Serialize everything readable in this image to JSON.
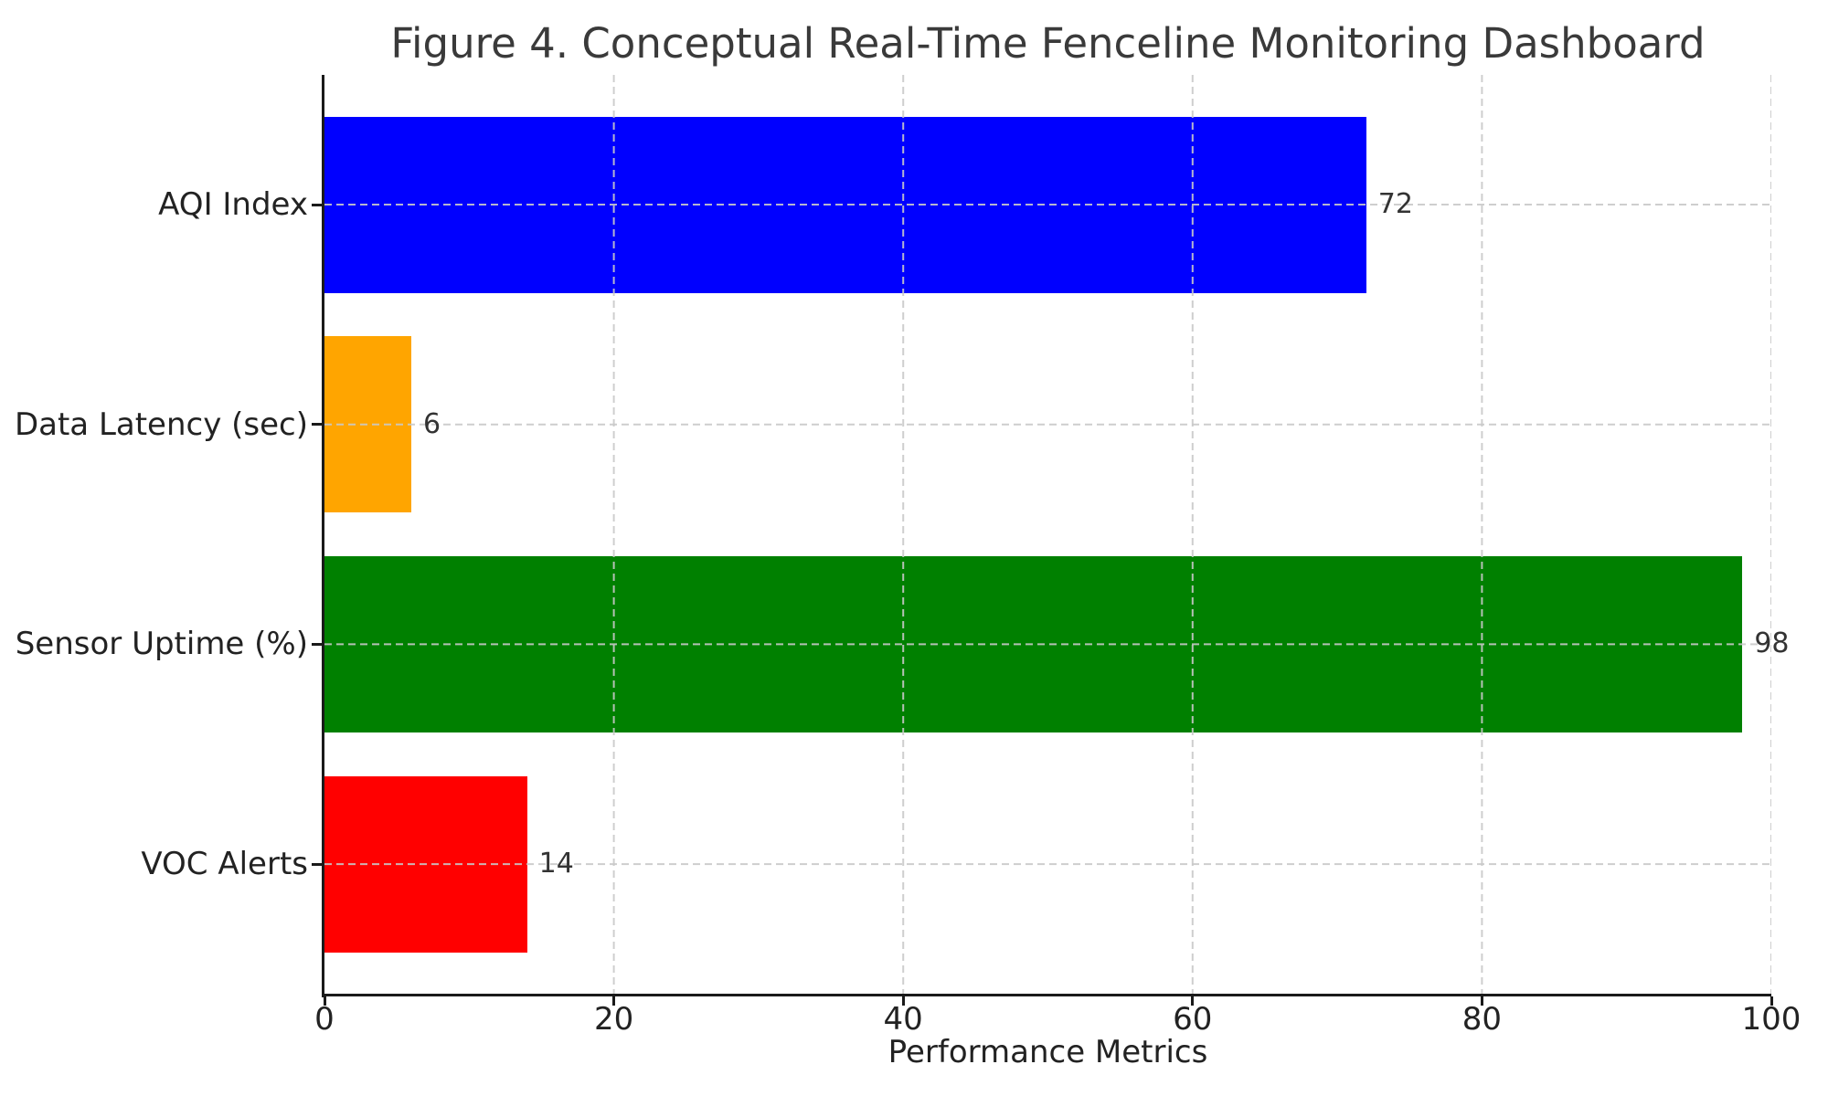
{
  "figure": {
    "title": "Figure 4. Conceptual Real-Time Fenceline Monitoring Dashboard"
  },
  "chart_data": {
    "type": "bar",
    "orientation": "horizontal",
    "title": "Figure 4. Conceptual Real-Time Fenceline Monitoring Dashboard",
    "categories": [
      "AQI Index",
      "Data Latency (sec)",
      "Sensor Uptime (%)",
      "VOC Alerts"
    ],
    "values": [
      72,
      6,
      98,
      14
    ],
    "value_labels": [
      "72",
      "6",
      "98",
      "14"
    ],
    "bar_colors": [
      "#0000ff",
      "#ffa500",
      "#008000",
      "#ff0000"
    ],
    "xlabel": "Performance Metrics",
    "ylabel": "",
    "xlim": [
      0,
      100
    ],
    "xticks": [
      0,
      20,
      40,
      60,
      80,
      100
    ],
    "xtick_labels": [
      "0",
      "20",
      "40",
      "60",
      "80",
      "100"
    ],
    "grid": "dashed gridlines on both axes, drawn above bars",
    "legend_position": "none"
  },
  "colors": {
    "background": "#ffffff",
    "title_text": "#3a3a3a",
    "axis_text": "#222222",
    "annotation_text": "#333333",
    "spine": "#1a1a1a",
    "gridline": "#c9c9c9",
    "bar_blue": "#0000ff",
    "bar_orange": "#ffa500",
    "bar_green": "#008000",
    "bar_red": "#ff0000"
  }
}
